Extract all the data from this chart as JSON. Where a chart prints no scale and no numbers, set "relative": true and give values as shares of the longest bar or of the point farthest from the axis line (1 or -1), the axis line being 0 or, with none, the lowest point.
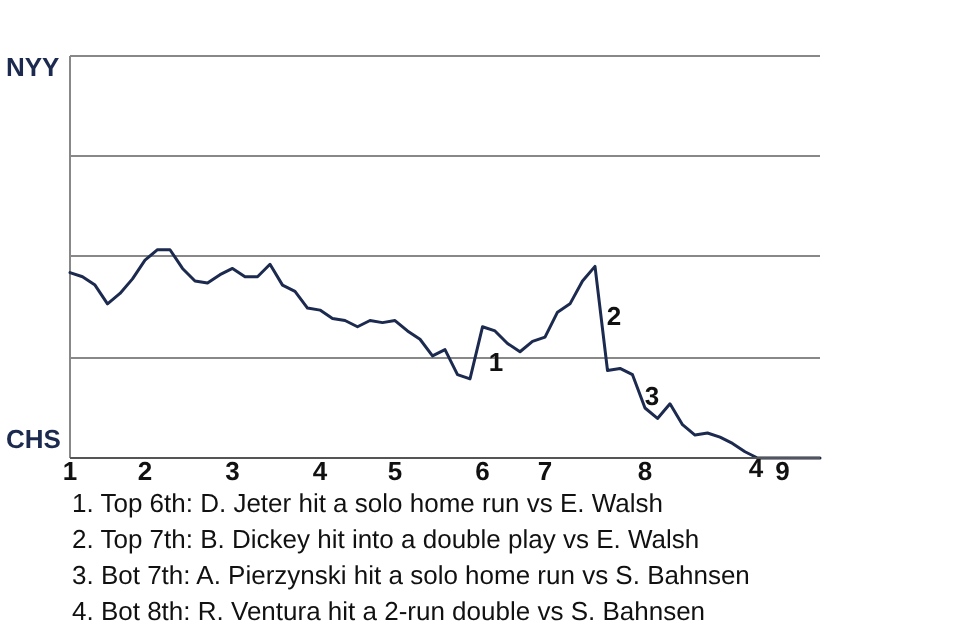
{
  "chart_data": {
    "type": "line",
    "relative": true,
    "categories": [
      "1",
      null,
      null,
      null,
      null,
      null,
      "2",
      null,
      null,
      null,
      null,
      null,
      null,
      "3",
      null,
      null,
      null,
      null,
      null,
      null,
      "4",
      null,
      null,
      null,
      null,
      null,
      "5",
      null,
      null,
      null,
      null,
      null,
      null,
      "6",
      null,
      null,
      null,
      null,
      "7",
      null,
      null,
      null,
      null,
      null,
      null,
      null,
      "8",
      null,
      null,
      null,
      null,
      null,
      null,
      null,
      null,
      null,
      null,
      "9",
      null,
      null,
      null
    ],
    "series": [
      {
        "color": "#1b2a4e",
        "values": [
          0.89,
          0.87,
          0.83,
          0.74,
          0.79,
          0.86,
          0.95,
          1,
          1,
          0.91,
          0.85,
          0.84,
          0.88,
          0.91,
          0.87,
          0.87,
          0.93,
          0.83,
          0.8,
          0.72,
          0.71,
          0.67,
          0.66,
          0.63,
          0.66,
          0.65,
          0.66,
          0.61,
          0.57,
          0.49,
          0.52,
          0.4,
          0.38,
          0.63,
          0.61,
          0.55,
          0.51,
          0.56,
          0.58,
          0.7,
          0.74,
          0.85,
          0.92,
          0.42,
          0.43,
          0.4,
          0.24,
          0.19,
          0.26,
          0.16,
          0.11,
          0.12,
          0.1,
          0.07,
          0.03,
          0,
          0,
          0,
          0,
          0,
          0
        ]
      }
    ],
    "ref_lines": [
      {
        "axis": "y",
        "value": 0.48,
        "color": "#888888"
      },
      {
        "axis": "y",
        "value": 0.97,
        "color": "#888888"
      },
      {
        "axis": "y",
        "value": 1.45,
        "color": "#888888"
      },
      {
        "axis": "y",
        "value": 1.93,
        "color": "#888888"
      }
    ],
    "marker": "none",
    "line_style": "solid",
    "annotations": [
      "NYY",
      "CHS",
      "1",
      "2",
      "3",
      "4",
      "1. Top 6th: D. Jeter hit a solo home run vs E. Walsh",
      "2. Top 7th: B. Dickey hit into a double play vs E. Walsh",
      "3. Bot 7th: A. Pierzynski hit a solo home run vs S. Bahnsen",
      "4. Bot 8th: R. Ventura hit a 2-run double vs S. Bahnsen"
    ]
  }
}
